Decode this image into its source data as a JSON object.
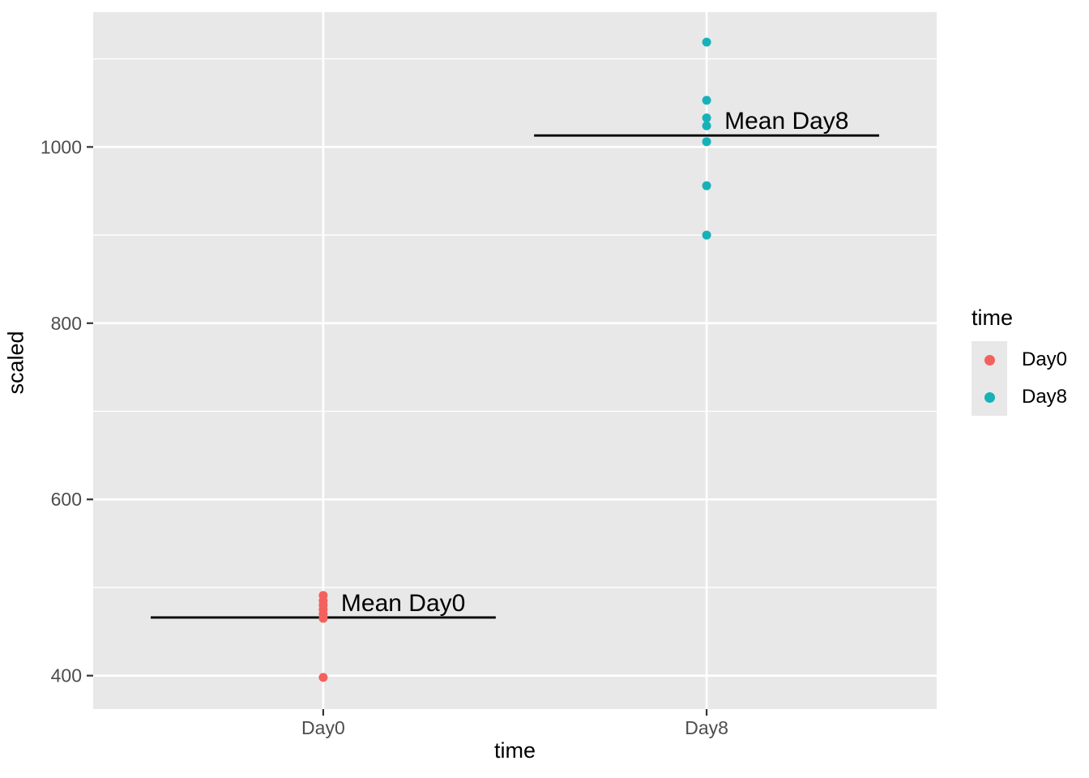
{
  "chart_data": {
    "type": "scatter",
    "title": "",
    "xlabel": "time",
    "ylabel": "scaled",
    "categories": [
      "Day0",
      "Day8"
    ],
    "series": [
      {
        "name": "Day0",
        "color": "#F3615E",
        "category": "Day0",
        "values": [
          398,
          465,
          470,
          475,
          480,
          485,
          491
        ],
        "mean": 466
      },
      {
        "name": "Day8",
        "color": "#17B2B8",
        "category": "Day8",
        "values": [
          900,
          956,
          1006,
          1024,
          1033,
          1053,
          1119
        ],
        "mean": 1013
      }
    ],
    "mean_lines": [
      {
        "label": "Mean Day0",
        "category": "Day0",
        "value": 466
      },
      {
        "label": "Mean Day8",
        "category": "Day8",
        "value": 1013
      }
    ],
    "mean_line_half_width_units": 0.45,
    "y_ticks": [
      400,
      600,
      800,
      1000
    ],
    "y_minor_ticks": [
      500,
      700,
      900,
      1100
    ],
    "ylim": [
      362,
      1153
    ],
    "grid": true,
    "legend": {
      "title": "time",
      "position": "right",
      "entries": [
        {
          "label": "Day0",
          "color": "#F3615E"
        },
        {
          "label": "Day8",
          "color": "#17B2B8"
        }
      ]
    }
  },
  "style": {
    "panel_bg": "#E8E8E8",
    "grid_color": "#FFFFFF",
    "tick_color": "#333333",
    "tick_label_color": "#4D4D4D",
    "axis_title_color": "#000000",
    "annotation_color": "#000000",
    "mean_line_color": "#000000"
  }
}
